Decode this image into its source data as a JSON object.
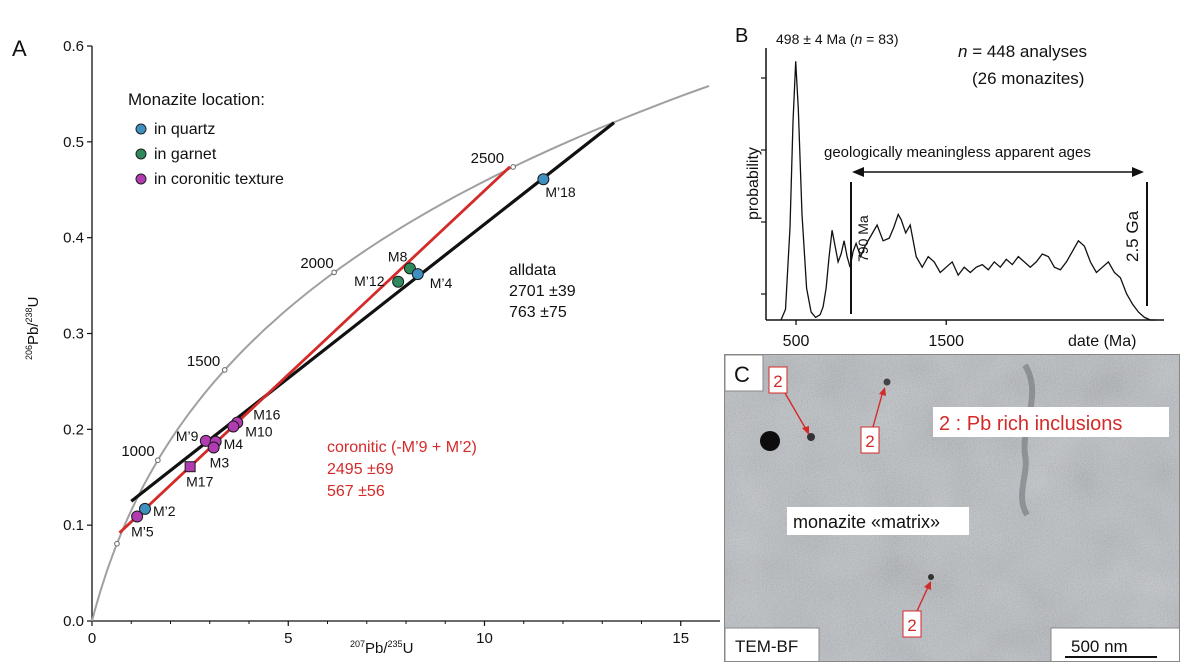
{
  "panelA": {
    "letter": "A",
    "legend": {
      "title": "Monazite location:",
      "items": [
        {
          "label": "in quartz",
          "color": "#3f8fc0"
        },
        {
          "label": "in garnet",
          "color": "#2e8a5c"
        },
        {
          "label": "in coronitic texture",
          "color": "#b13bb1"
        }
      ]
    },
    "alldata_text": [
      "alldata",
      "2701 ±39",
      "763 ±75"
    ],
    "coronitic_text": [
      "coronitic (-M’9 + M’2)",
      "2495 ±69",
      "567 ±56"
    ],
    "colors": {
      "concordia": "#a0a0a0",
      "black_line": "#111111",
      "red_line": "#d42a2a",
      "red_text": "#d42a2a"
    }
  },
  "chart_data": [
    {
      "type": "scatter",
      "xlabel_parts": [
        "207",
        "Pb/",
        "235",
        "U"
      ],
      "ylabel_parts": [
        "206",
        "Pb/",
        "238",
        "U"
      ],
      "xlim": [
        0,
        16
      ],
      "ylim": [
        0,
        0.6
      ],
      "xticks": [
        0,
        5,
        10,
        15
      ],
      "yticks": [
        "0.0",
        "0.1",
        "0.2",
        "0.3",
        "0.4",
        "0.5",
        "0.6"
      ],
      "concordia_age_labels": [
        {
          "label": "1000",
          "x": 1.7,
          "y": 0.168
        },
        {
          "label": "1500",
          "x": 3.37,
          "y": 0.262
        },
        {
          "label": "2000",
          "x": 6.26,
          "y": 0.364
        },
        {
          "label": "2500",
          "x": 10.6,
          "y": 0.474
        }
      ],
      "discordia_alldata": [
        [
          1.0,
          0.125
        ],
        [
          13.3,
          0.52
        ]
      ],
      "discordia_coronitic": [
        [
          0.7,
          0.092
        ],
        [
          10.65,
          0.474
        ]
      ],
      "points": [
        {
          "label": "M’18",
          "x": 11.5,
          "y": 0.461,
          "group": "quartz"
        },
        {
          "label": "M8",
          "x": 8.1,
          "y": 0.368,
          "group": "garnet"
        },
        {
          "label": "M’12",
          "x": 7.8,
          "y": 0.354,
          "group": "garnet"
        },
        {
          "label": "M’4",
          "x": 8.3,
          "y": 0.362,
          "group": "quartz"
        },
        {
          "label": "M16",
          "x": 3.7,
          "y": 0.207,
          "group": "coronitic"
        },
        {
          "label": "M10",
          "x": 3.6,
          "y": 0.203,
          "group": "coronitic"
        },
        {
          "label": "M’9",
          "x": 2.9,
          "y": 0.188,
          "group": "coronitic"
        },
        {
          "label": "M4",
          "x": 3.15,
          "y": 0.187,
          "group": "coronitic"
        },
        {
          "label": "M3",
          "x": 3.1,
          "y": 0.181,
          "group": "coronitic"
        },
        {
          "label": "M17",
          "x": 2.5,
          "y": 0.161,
          "group": "coronitic"
        },
        {
          "label": "M’2",
          "x": 1.35,
          "y": 0.117,
          "group": "quartz"
        },
        {
          "label": "M’5",
          "x": 1.15,
          "y": 0.109,
          "group": "coronitic"
        }
      ]
    },
    {
      "type": "line",
      "panel": "B",
      "ylabel": "probability",
      "xlabel": "date (Ma)",
      "xlim": [
        300,
        2950
      ],
      "xticks": [
        500,
        1500
      ],
      "peak_label": "498 ± 4 Ma (",
      "peak_label_n": "n",
      "peak_label_rest": " = 83)",
      "n_label_italic": "n",
      "n_label_rest": " = 448 analyses",
      "n_label_line2": "(26 monazites)",
      "arrow_label": "geologically meaningless apparent ages",
      "marker_790": "790 Ma",
      "marker_2_5": "2.5 Ga",
      "x": [
        400,
        430,
        460,
        480,
        498,
        515,
        540,
        570,
        600,
        630,
        660,
        680,
        700,
        720,
        740,
        760,
        780,
        800,
        820,
        840,
        860,
        880,
        900,
        930,
        960,
        1000,
        1040,
        1080,
        1120,
        1150,
        1180,
        1200,
        1230,
        1260,
        1300,
        1340,
        1380,
        1420,
        1460,
        1500,
        1540,
        1580,
        1620,
        1660,
        1700,
        1740,
        1780,
        1820,
        1860,
        1900,
        1940,
        1980,
        2020,
        2060,
        2100,
        2140,
        2180,
        2220,
        2260,
        2300,
        2340,
        2380,
        2420,
        2460,
        2500,
        2540,
        2580,
        2620,
        2660,
        2700,
        2740,
        2780,
        2820,
        2860,
        2900
      ],
      "y": [
        0,
        0.04,
        0.35,
        0.75,
        0.98,
        0.8,
        0.4,
        0.12,
        0.03,
        0.01,
        0.02,
        0.05,
        0.12,
        0.24,
        0.34,
        0.28,
        0.22,
        0.25,
        0.3,
        0.24,
        0.2,
        0.26,
        0.29,
        0.24,
        0.28,
        0.32,
        0.36,
        0.3,
        0.31,
        0.35,
        0.4,
        0.38,
        0.33,
        0.36,
        0.24,
        0.2,
        0.24,
        0.22,
        0.18,
        0.2,
        0.22,
        0.17,
        0.2,
        0.18,
        0.2,
        0.21,
        0.19,
        0.22,
        0.2,
        0.23,
        0.21,
        0.24,
        0.22,
        0.2,
        0.22,
        0.25,
        0.24,
        0.2,
        0.19,
        0.22,
        0.26,
        0.3,
        0.28,
        0.22,
        0.18,
        0.2,
        0.22,
        0.18,
        0.16,
        0.1,
        0.06,
        0.03,
        0.01,
        0,
        0
      ]
    }
  ],
  "panelB": {
    "letter": "B"
  },
  "panelC": {
    "letter": "C",
    "markers": [
      "2",
      "2",
      "2"
    ],
    "inclusion_label": "2 : Pb rich inclusions",
    "matrix_label": "monazite «matrix»",
    "mode_label": "TEM-BF",
    "scale_label": "500 nm"
  }
}
